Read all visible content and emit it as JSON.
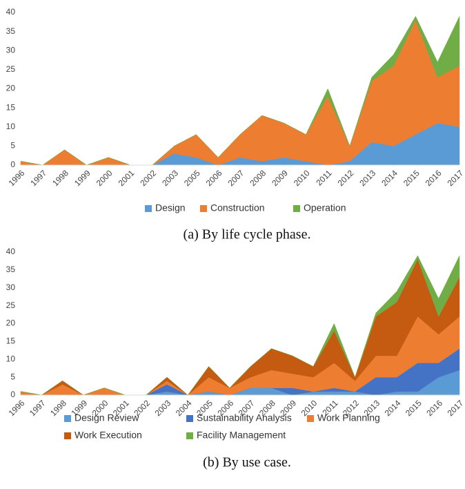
{
  "chart_data": [
    {
      "type": "area",
      "stacked": true,
      "caption": "(a) By life cycle phase.",
      "categories": [
        "1996",
        "1997",
        "1998",
        "1999",
        "2000",
        "2001",
        "2002",
        "2003",
        "2005",
        "2006",
        "2007",
        "2008",
        "2009",
        "2010",
        "2011",
        "2012",
        "2013",
        "2014",
        "2015",
        "2016",
        "2017"
      ],
      "series": [
        {
          "name": "Design",
          "color": "#5b9bd5",
          "values": [
            0,
            0,
            0,
            0,
            0,
            0,
            0,
            3,
            2,
            0,
            2,
            1,
            2,
            1,
            0,
            1,
            6,
            5,
            8,
            11,
            10
          ]
        },
        {
          "name": "Construction",
          "color": "#ed7d31",
          "values": [
            1,
            0,
            4,
            0,
            2,
            0,
            0,
            2,
            6,
            2,
            6,
            12,
            9,
            7,
            18,
            4,
            16,
            21,
            30,
            12,
            16
          ]
        },
        {
          "name": "Operation",
          "color": "#70ad47",
          "values": [
            0,
            0,
            0,
            0,
            0,
            0,
            0,
            0,
            0,
            0,
            0,
            0,
            0,
            0,
            2,
            0,
            1,
            3,
            1,
            4,
            13
          ]
        }
      ],
      "ylim": [
        0,
        40
      ],
      "yticks": [
        0,
        5,
        10,
        15,
        20,
        25,
        30,
        35,
        40
      ],
      "legend": "bottom"
    },
    {
      "type": "area",
      "stacked": true,
      "caption": "(b) By use case.",
      "categories": [
        "1996",
        "1997",
        "1998",
        "1999",
        "2000",
        "2001",
        "2002",
        "2003",
        "2004",
        "2005",
        "2006",
        "2007",
        "2008",
        "2009",
        "2010",
        "2011",
        "2012",
        "2013",
        "2014",
        "2015",
        "2016",
        "2017"
      ],
      "series": [
        {
          "name": "Design Review",
          "color": "#5b9bd5",
          "values": [
            0,
            0,
            0,
            0,
            0,
            0,
            0,
            1,
            0,
            1,
            0,
            2,
            2,
            0,
            1,
            1,
            1,
            0,
            1,
            1,
            5,
            7
          ]
        },
        {
          "name": "Sustainability Analysis",
          "color": "#4472c4",
          "values": [
            0,
            0,
            0,
            0,
            0,
            0,
            0,
            2,
            0,
            0,
            0,
            0,
            0,
            2,
            0,
            1,
            0,
            5,
            4,
            8,
            4,
            6
          ]
        },
        {
          "name": "Work Planning",
          "color": "#ed7d31",
          "values": [
            1,
            0,
            3,
            0,
            2,
            0,
            0,
            1,
            0,
            4,
            2,
            3,
            5,
            4,
            4,
            7,
            3,
            6,
            6,
            13,
            8,
            9
          ]
        },
        {
          "name": "Work Execution",
          "color": "#c55a11",
          "values": [
            0,
            0,
            1,
            0,
            0,
            0,
            0,
            1,
            0,
            3,
            0,
            3,
            6,
            5,
            3,
            9,
            1,
            11,
            15,
            16,
            5,
            11
          ]
        },
        {
          "name": "Facility Management",
          "color": "#70ad47",
          "values": [
            0,
            0,
            0,
            0,
            0,
            0,
            0,
            0,
            0,
            0,
            0,
            0,
            0,
            0,
            0,
            2,
            0,
            1,
            3,
            1,
            5,
            6
          ]
        }
      ],
      "ylim": [
        0,
        40
      ],
      "yticks": [
        0,
        5,
        10,
        15,
        20,
        25,
        30,
        35,
        40
      ],
      "legend": "bottom"
    }
  ]
}
